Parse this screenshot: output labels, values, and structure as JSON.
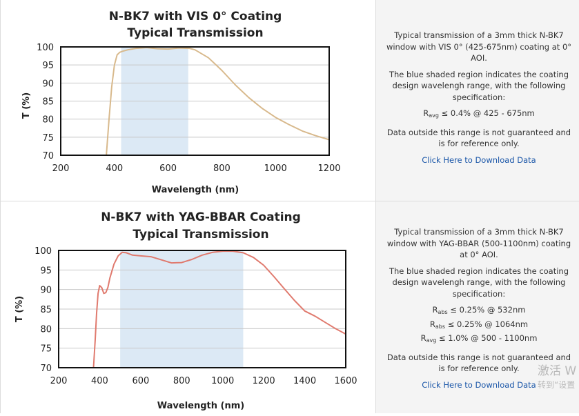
{
  "chart_data": [
    {
      "type": "line",
      "title": "N-BK7 with VIS 0° Coating",
      "subtitle": "Typical Transmission",
      "xlabel": "Wavelength (nm)",
      "ylabel": "T (%)",
      "xlim": [
        200,
        1200
      ],
      "ylim": [
        70,
        100
      ],
      "xticks": [
        200,
        400,
        600,
        800,
        1000,
        1200
      ],
      "yticks": [
        70,
        75,
        80,
        85,
        90,
        95,
        100
      ],
      "grid": true,
      "shaded_region": [
        425,
        675
      ],
      "shade_color": "#dce9f5",
      "line_color": "#d8b98c",
      "series": [
        {
          "x": [
            370,
            380,
            390,
            400,
            410,
            420,
            430,
            450,
            480,
            520,
            560,
            600,
            640,
            680,
            700,
            750,
            800,
            850,
            900,
            950,
            1000,
            1050,
            1100,
            1150,
            1200
          ],
          "y": [
            70,
            80,
            89,
            95,
            97.8,
            98.5,
            98.8,
            99.2,
            99.6,
            99.8,
            99.5,
            99.4,
            99.7,
            99.6,
            99.2,
            97,
            93.5,
            89.5,
            86,
            83,
            80.5,
            78.5,
            76.7,
            75.4,
            74.3
          ]
        }
      ]
    },
    {
      "type": "line",
      "title": "N-BK7 with YAG-BBAR Coating",
      "subtitle": "Typical Transmission",
      "xlabel": "Wavelength (nm)",
      "ylabel": "T (%)",
      "xlim": [
        200,
        1600
      ],
      "ylim": [
        70,
        100
      ],
      "xticks": [
        200,
        400,
        600,
        800,
        1000,
        1200,
        1400,
        1600
      ],
      "yticks": [
        70,
        75,
        80,
        85,
        90,
        95,
        100
      ],
      "grid": true,
      "shaded_region": [
        500,
        1100
      ],
      "shade_color": "#dce9f5",
      "line_color": "#e07a6e",
      "series": [
        {
          "x": [
            370,
            378,
            385,
            392,
            400,
            410,
            420,
            430,
            440,
            450,
            470,
            490,
            510,
            530,
            560,
            600,
            650,
            700,
            750,
            800,
            850,
            900,
            950,
            1000,
            1050,
            1100,
            1150,
            1200,
            1250,
            1300,
            1350,
            1400,
            1450,
            1500,
            1550,
            1600
          ],
          "y": [
            70,
            77,
            84,
            89,
            91,
            90.5,
            89,
            89.2,
            90.5,
            93,
            96.5,
            98.6,
            99.5,
            99.4,
            98.8,
            98.6,
            98.4,
            97.6,
            96.8,
            96.9,
            97.7,
            98.8,
            99.5,
            99.8,
            99.8,
            99.4,
            98.2,
            96.2,
            93.3,
            90.2,
            87.2,
            84.5,
            83.2,
            81.6,
            80,
            78.6
          ]
        }
      ]
    }
  ],
  "panels": [
    {
      "title": "N-BK7 with VIS 0° Coating",
      "subtitle": "Typical Transmission",
      "xlabel": "Wavelength (nm)",
      "ylabel": "T (%)",
      "desc1": "Typical transmission of a 3mm thick N-BK7 window with VIS 0° (425-675nm) coating at 0° AOI.",
      "desc2": "The blue shaded region indicates the coating design wavelengh range, with the following specification:",
      "specs": [
        {
          "base": "R",
          "sub": "avg",
          "text": "≤ 0.4% @ 425 - 675nm"
        }
      ],
      "desc3": "Data outside this range is not guaranteed and is for reference only.",
      "link": "Click Here to Download Data"
    },
    {
      "title": "N-BK7 with YAG-BBAR Coating",
      "subtitle": "Typical Transmission",
      "xlabel": "Wavelength (nm)",
      "ylabel": "T (%)",
      "desc1": "Typical transmission of a 3mm thick N-BK7 window with YAG-BBAR (500-1100nm) coating at 0° AOI.",
      "desc2": "The blue shaded region indicates the coating design wavelengh range, with the following specification:",
      "specs": [
        {
          "base": "R",
          "sub": "abs",
          "text": "≤ 0.25% @ 532nm"
        },
        {
          "base": "R",
          "sub": "abs",
          "text": "≤ 0.25% @ 1064nm"
        },
        {
          "base": "R",
          "sub": "avg",
          "text": "≤ 1.0% @ 500 - 1100nm"
        }
      ],
      "desc3": "Data outside this range is not guaranteed and is for reference only.",
      "link": "Click Here to Download Data"
    }
  ],
  "watermark": {
    "line1": "激活 W",
    "line2": "转到“设置"
  }
}
